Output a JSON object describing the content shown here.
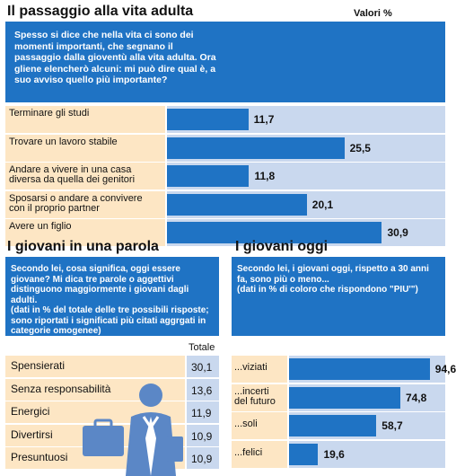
{
  "colors": {
    "accent": "#1f73c4",
    "bar_track": "#c9d8ee",
    "label_bg": "#fde6c4",
    "icon": "#5b87c6"
  },
  "section1": {
    "title": "Il passaggio alla vita adulta",
    "unit_label": "Valori %",
    "question": "Spesso si dice che nella vita ci sono dei momenti importanti, che segnano il passaggio dalla gioventù alla vita adulta. Ora gliene elencherò alcuni: mi può dire qual è, a suo avviso quello più importante?"
  },
  "section2": {
    "title": "I giovani in una parola",
    "question": "Secondo lei, cosa significa, oggi  essere giovane? Mi dica tre parole o aggettivi distinguono maggiormente i giovani dagli adulti.",
    "note": "(dati in % del totale delle tre possibili risposte; sono riportati i significati più citati aggrgati in categorie omogenee)",
    "column_header": "Totale"
  },
  "section3": {
    "title": "I giovani oggi",
    "question": "Secondo lei, i giovani oggi, rispetto a 30 anni fa, sono più o meno...",
    "note": "(dati in % di coloro che rispondono \"PIU'\")"
  },
  "chart_data": [
    {
      "type": "bar",
      "orientation": "horizontal",
      "title": "Il passaggio alla vita adulta",
      "categories": [
        "Terminare gli studi",
        "Trovare un lavoro stabile",
        "Andare a vivere in una casa diversa da quella dei genitori",
        "Sposarsi o andare a convivere con il proprio partner",
        "Avere un figlio"
      ],
      "labels_display": [
        [
          "Terminare gli studi"
        ],
        [
          "Trovare un lavoro stabile"
        ],
        [
          "Andare a vivere in una casa",
          "diversa da quella dei genitori"
        ],
        [
          "Sposarsi o andare a convivere",
          "con il proprio partner"
        ],
        [
          "Avere un figlio"
        ]
      ],
      "values": [
        11.7,
        25.5,
        11.8,
        20.1,
        30.9
      ],
      "value_labels": [
        "11,7",
        "25,5",
        "11,8",
        "20,1",
        "30,9"
      ]
    },
    {
      "type": "table",
      "title": "I giovani in una parola",
      "column": "Totale",
      "categories": [
        "Spensierati",
        "Senza responsabilità",
        "Energici",
        "Divertirsi",
        "Presuntuosi"
      ],
      "values": [
        30.1,
        13.6,
        11.9,
        10.9,
        10.9
      ],
      "value_labels": [
        "30,1",
        "13,6",
        "11,9",
        "10,9",
        "10,9"
      ]
    },
    {
      "type": "bar",
      "orientation": "horizontal",
      "title": "I giovani oggi",
      "categories": [
        "...viziati",
        "...incerti del futuro",
        "...soli",
        "...felici"
      ],
      "labels_display": [
        [
          "...viziati"
        ],
        [
          "...incerti",
          "del futuro"
        ],
        [
          "...soli"
        ],
        [
          "...felici"
        ]
      ],
      "values": [
        94.6,
        74.8,
        58.7,
        19.6
      ],
      "value_labels": [
        "94,6",
        "74,8",
        "58,7",
        "19,6"
      ]
    }
  ]
}
